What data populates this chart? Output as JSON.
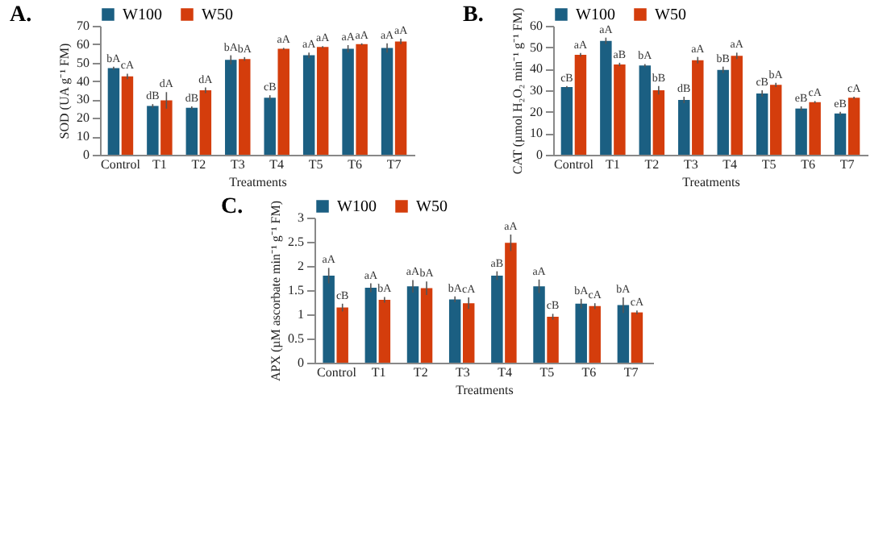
{
  "chart_data": [
    {
      "type": "bar",
      "title": "A.",
      "xlabel": "Treatments",
      "ylabel": "SOD (UA g⁻¹ FM)",
      "categories": [
        "Control",
        "T1",
        "T2",
        "T3",
        "T4",
        "T5",
        "T6",
        "T7"
      ],
      "legend": "top",
      "grid": false,
      "ylim": [
        0,
        70
      ],
      "yticks": [
        0,
        10,
        20,
        30,
        40,
        50,
        60,
        70
      ],
      "series": [
        {
          "name": "W100",
          "color": "#1b5f82",
          "values": [
            47,
            26.5,
            25.5,
            51.5,
            31,
            54,
            57.5,
            58
          ],
          "errors": [
            0.8,
            1,
            0.8,
            2.5,
            1.3,
            1.5,
            2,
            2.5
          ]
        },
        {
          "name": "W50",
          "color": "#d43d0c",
          "values": [
            42.5,
            29.5,
            35,
            52,
            57.5,
            58.5,
            60,
            61.5
          ],
          "errors": [
            1.5,
            4.5,
            1.5,
            1,
            0.5,
            0.5,
            0.5,
            1.5
          ]
        }
      ],
      "annotations": [
        {
          "text": "bA",
          "x": "Control",
          "y": 47.8
        },
        {
          "text": "cA",
          "x": "Control",
          "y": 44
        },
        {
          "text": "dB",
          "x": "T1",
          "y": 27.5
        },
        {
          "text": "dA",
          "x": "T1",
          "y": 34
        },
        {
          "text": "dB",
          "x": "T2",
          "y": 26.3
        },
        {
          "text": "dA",
          "x": "T2",
          "y": 36.5
        },
        {
          "text": "bA",
          "x": "T3",
          "y": 54
        },
        {
          "text": "bA",
          "x": "T3",
          "y": 53
        },
        {
          "text": "cB",
          "x": "T4",
          "y": 32.3
        },
        {
          "text": "aA",
          "x": "T4",
          "y": 58
        },
        {
          "text": "aA",
          "x": "T5",
          "y": 55.5
        },
        {
          "text": "aA",
          "x": "T5",
          "y": 59
        },
        {
          "text": "aA",
          "x": "T6",
          "y": 59.5
        },
        {
          "text": "aA",
          "x": "T6",
          "y": 60.3
        },
        {
          "text": "aA",
          "x": "T7",
          "y": 60.5
        },
        {
          "text": "aA",
          "x": "T7",
          "y": 63
        }
      ]
    },
    {
      "type": "bar",
      "title": "B.",
      "xlabel": "Treatments",
      "ylabel": "CAT (µmol H₂O₂ min⁻¹ g⁻¹ FM)",
      "categories": [
        "Control",
        "T1",
        "T2",
        "T3",
        "T4",
        "T5",
        "T6",
        "T7"
      ],
      "legend": "top",
      "grid": false,
      "ylim": [
        0,
        60
      ],
      "yticks": [
        0,
        10,
        20,
        30,
        40,
        50,
        60
      ],
      "series": [
        {
          "name": "W100",
          "color": "#1b5f82",
          "values": [
            31.5,
            53,
            41.5,
            25.5,
            39.5,
            28.5,
            21.5,
            19.2
          ],
          "errors": [
            0.5,
            1.5,
            0.7,
            1.5,
            1.5,
            1.5,
            1,
            0.8
          ]
        },
        {
          "name": "W50",
          "color": "#d43d0c",
          "values": [
            46.5,
            42,
            30,
            44,
            46,
            32.5,
            24.5,
            26.5
          ],
          "errors": [
            0.8,
            0.8,
            2,
            1.5,
            1.5,
            1,
            0.5,
            0.5
          ]
        }
      ],
      "annotations": [
        {
          "text": "cB",
          "x": "Control",
          "y": 32
        },
        {
          "text": "aA",
          "x": "Control",
          "y": 47.3
        },
        {
          "text": "aA",
          "x": "T1",
          "y": 54.5
        },
        {
          "text": "aB",
          "x": "T1",
          "y": 42.8
        },
        {
          "text": "bA",
          "x": "T2",
          "y": 42.2
        },
        {
          "text": "bB",
          "x": "T2",
          "y": 32
        },
        {
          "text": "dB",
          "x": "T3",
          "y": 27
        },
        {
          "text": "aA",
          "x": "T3",
          "y": 45.5
        },
        {
          "text": "bB",
          "x": "T4",
          "y": 41
        },
        {
          "text": "aA",
          "x": "T4",
          "y": 47.5
        },
        {
          "text": "cB",
          "x": "T5",
          "y": 30
        },
        {
          "text": "bA",
          "x": "T5",
          "y": 33.5
        },
        {
          "text": "eB",
          "x": "T6",
          "y": 22.5
        },
        {
          "text": "cA",
          "x": "T6",
          "y": 25
        },
        {
          "text": "eB",
          "x": "T7",
          "y": 20
        },
        {
          "text": "cA",
          "x": "T7",
          "y": 27
        }
      ]
    },
    {
      "type": "bar",
      "title": "C.",
      "xlabel": "Treatments",
      "ylabel": "APX (µM ascorbate min⁻¹ g⁻¹ FM)",
      "categories": [
        "Control",
        "T1",
        "T2",
        "T3",
        "T4",
        "T5",
        "T6",
        "T7"
      ],
      "legend": "top",
      "grid": false,
      "ylim": [
        0,
        3
      ],
      "yticks": [
        0,
        0.5,
        1,
        1.5,
        2,
        2.5,
        3
      ],
      "series": [
        {
          "name": "W100",
          "color": "#1b5f82",
          "values": [
            1.8,
            1.55,
            1.58,
            1.31,
            1.8,
            1.58,
            1.22,
            1.19
          ],
          "errors": [
            0.16,
            0.09,
            0.13,
            0.06,
            0.09,
            0.14,
            0.1,
            0.16
          ]
        },
        {
          "name": "W50",
          "color": "#d43d0c",
          "values": [
            1.14,
            1.3,
            1.54,
            1.23,
            2.48,
            0.95,
            1.17,
            1.04
          ],
          "errors": [
            0.08,
            0.06,
            0.14,
            0.12,
            0.17,
            0.06,
            0.06,
            0.04
          ]
        }
      ],
      "annotations": [
        {
          "text": "aA",
          "x": "Control",
          "y": 1.96
        },
        {
          "text": "cB",
          "x": "Control",
          "y": 1.22
        },
        {
          "text": "aA",
          "x": "T1",
          "y": 1.64
        },
        {
          "text": "bA",
          "x": "T1",
          "y": 1.36
        },
        {
          "text": "aA",
          "x": "T2",
          "y": 1.71
        },
        {
          "text": "bA",
          "x": "T2",
          "y": 1.68
        },
        {
          "text": "bA",
          "x": "T3",
          "y": 1.37
        },
        {
          "text": "cA",
          "x": "T3",
          "y": 1.35
        },
        {
          "text": "aB",
          "x": "T4",
          "y": 1.89
        },
        {
          "text": "aA",
          "x": "T4",
          "y": 2.65
        },
        {
          "text": "aA",
          "x": "T5",
          "y": 1.72
        },
        {
          "text": "cB",
          "x": "T5",
          "y": 1.01
        },
        {
          "text": "bA",
          "x": "T6",
          "y": 1.32
        },
        {
          "text": "cA",
          "x": "T6",
          "y": 1.23
        },
        {
          "text": "bA",
          "x": "T7",
          "y": 1.35
        },
        {
          "text": "cA",
          "x": "T7",
          "y": 1.08
        }
      ]
    }
  ]
}
